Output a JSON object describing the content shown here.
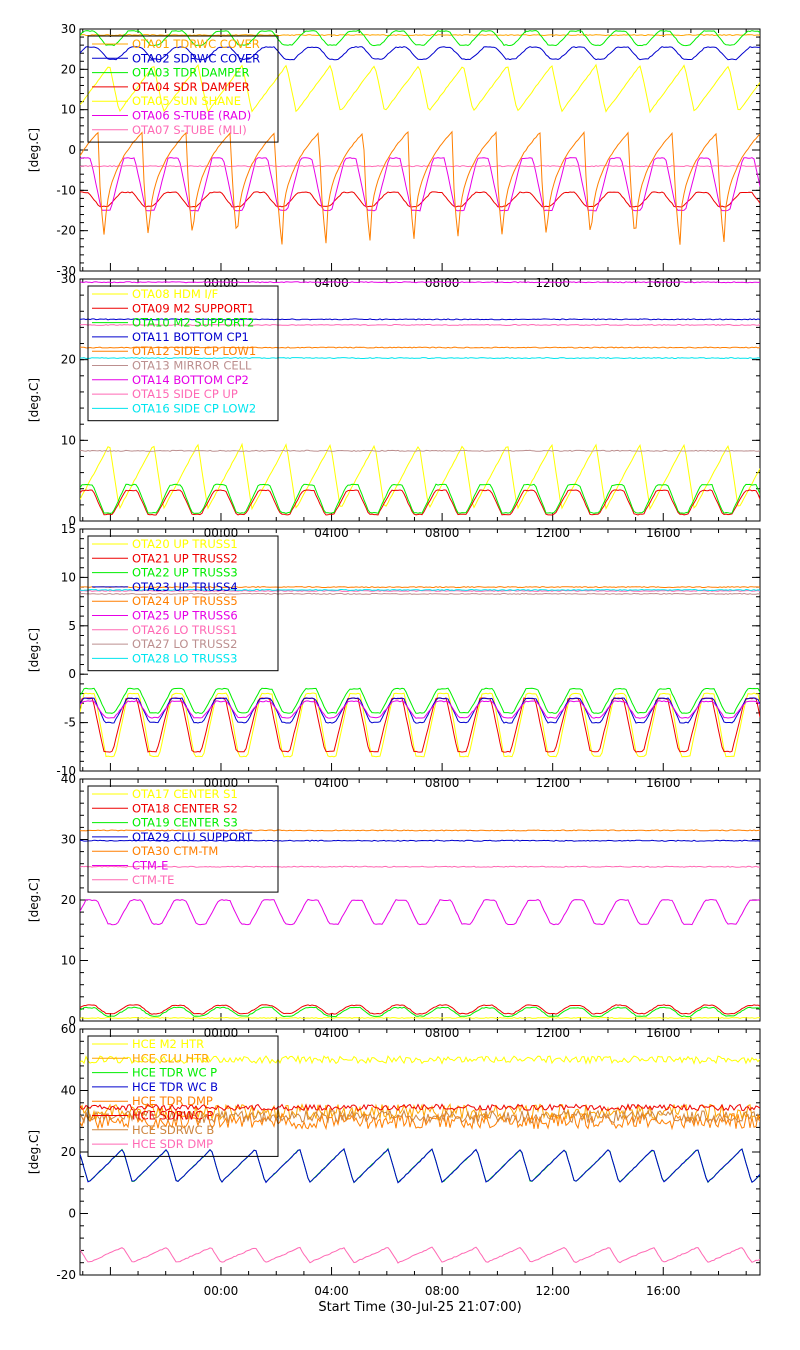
{
  "chart_data": [
    {
      "type": "line",
      "ylabel": "[deg.C]",
      "ylim": [
        -30,
        30
      ],
      "yticks": [
        "30",
        "20",
        "10",
        "0",
        "-10",
        "-20",
        "-30"
      ],
      "ytick_values": [
        30,
        20,
        10,
        0,
        -10,
        -20,
        -30
      ],
      "xticks": [
        "00:00",
        "04:00",
        "08:00",
        "12:00",
        "16:00"
      ],
      "xtick_hours": [
        0,
        4,
        8,
        12,
        16
      ],
      "xlim_hours": [
        -5.1,
        19.5
      ],
      "legend": "top-left",
      "series": [
        {
          "name": "OTA01 TDRWC COVER",
          "color": "#ffa500",
          "kind": "flat",
          "value": 28.5
        },
        {
          "name": "OTA02 SDRWC COVER",
          "color": "#0000cd",
          "kind": "cycle",
          "min": 22.5,
          "max": 25.5,
          "phase": 0.35
        },
        {
          "name": "OTA03 TDR DAMPER",
          "color": "#00ee00",
          "kind": "cycle",
          "min": 26.0,
          "max": 29.5,
          "phase": 0.4
        },
        {
          "name": "OTA04 SDR DAMPER",
          "color": "#ee0000",
          "kind": "cycle",
          "min": -14.0,
          "max": -10.5,
          "phase": 0.55
        },
        {
          "name": "OTA05 SUN SHANE",
          "color": "#ffff00",
          "kind": "saw",
          "min": 9.5,
          "max": 21.0,
          "phase": 0.3
        },
        {
          "name": "OTA06 S-TUBE (RAD)",
          "color": "#e600e6",
          "kind": "cycle",
          "min": -15.0,
          "max": -2.0,
          "phase": 0.5
        },
        {
          "name": "OTA07 S-TUBE (MLI)",
          "color": "#ff69b4",
          "kind": "flat",
          "value": -4.0
        },
        {
          "name": "",
          "color": "#ff7f00",
          "kind": "spike",
          "min": -23.5,
          "max": 4.5,
          "phase": 0.62
        }
      ]
    },
    {
      "type": "line",
      "ylabel": "[deg.C]",
      "ylim": [
        0,
        30
      ],
      "yticks": [
        "30",
        "20",
        "10",
        "0"
      ],
      "ytick_values": [
        30,
        20,
        10,
        0
      ],
      "xticks": [
        "00:00",
        "04:00",
        "08:00",
        "12:00",
        "16:00"
      ],
      "xtick_hours": [
        0,
        4,
        8,
        12,
        16
      ],
      "xlim_hours": [
        -5.1,
        19.5
      ],
      "legend": "top-left",
      "series": [
        {
          "name": "OTA08 HDM I/F",
          "color": "#ffff00",
          "kind": "saw",
          "min": 1.5,
          "max": 9.5,
          "phase": 0.3
        },
        {
          "name": "OTA09 M2 SUPPORT1",
          "color": "#ee0000",
          "kind": "cycle",
          "min": 0.8,
          "max": 3.8,
          "phase": 0.45
        },
        {
          "name": "OTA10 M2 SUPPORT2",
          "color": "#00ee00",
          "kind": "cycle",
          "min": 1.0,
          "max": 4.5,
          "phase": 0.45
        },
        {
          "name": "OTA11 BOTTOM CP1",
          "color": "#0000cd",
          "kind": "flat",
          "value": 25.0
        },
        {
          "name": "OTA12 SIDE CP LOW1",
          "color": "#ff7f00",
          "kind": "flat",
          "value": 21.5
        },
        {
          "name": "OTA13 MIRROR CELL",
          "color": "#bc8f8f",
          "kind": "flat",
          "value": 8.7
        },
        {
          "name": "OTA14 BOTTOM CP2",
          "color": "#e600e6",
          "kind": "flat",
          "value": 29.6
        },
        {
          "name": "OTA15 SIDE CP UP",
          "color": "#ff69b4",
          "kind": "flat",
          "value": 24.3
        },
        {
          "name": "OTA16 SIDE CP LOW2",
          "color": "#00e5ee",
          "kind": "flat",
          "value": 20.2
        }
      ]
    },
    {
      "type": "line",
      "ylabel": "[deg.C]",
      "ylim": [
        -10,
        15
      ],
      "yticks": [
        "15",
        "10",
        "5",
        "0",
        "-5",
        "-10"
      ],
      "ytick_values": [
        15,
        10,
        5,
        0,
        -5,
        -10
      ],
      "xticks": [
        "00:00",
        "04:00",
        "08:00",
        "12:00",
        "16:00"
      ],
      "xtick_hours": [
        0,
        4,
        8,
        12,
        16
      ],
      "xlim_hours": [
        -5.1,
        19.5
      ],
      "legend": "top-left",
      "series": [
        {
          "name": "OTA20 UP TRUSS1",
          "color": "#ffff00",
          "kind": "cycle",
          "min": -8.5,
          "max": -2.0,
          "phase": 0.4
        },
        {
          "name": "OTA21 UP TRUSS2",
          "color": "#ee0000",
          "kind": "cycle",
          "min": -8.0,
          "max": -2.5,
          "phase": 0.45
        },
        {
          "name": "OTA22 UP TRUSS3",
          "color": "#00ee00",
          "kind": "cycle",
          "min": -4.0,
          "max": -1.5,
          "phase": 0.4
        },
        {
          "name": "OTA23 UP TRUSS4",
          "color": "#0000cd",
          "kind": "cycle",
          "min": -5.0,
          "max": -2.5,
          "phase": 0.42
        },
        {
          "name": "OTA24 UP TRUSS5",
          "color": "#ff7f00",
          "kind": "flat",
          "value": 9.0
        },
        {
          "name": "OTA25 UP TRUSS6",
          "color": "#e600e6",
          "kind": "cycle",
          "min": -4.5,
          "max": -2.8,
          "phase": 0.42
        },
        {
          "name": "OTA26 LO TRUSS1",
          "color": "#ff69b4",
          "kind": "flat",
          "value": 8.6
        },
        {
          "name": "OTA27 LO TRUSS2",
          "color": "#bc8f8f",
          "kind": "flat",
          "value": 8.3
        },
        {
          "name": "OTA28 LO TRUSS3",
          "color": "#00e5ee",
          "kind": "flat",
          "value": 8.7
        }
      ]
    },
    {
      "type": "line",
      "ylabel": "[deg.C]",
      "ylim": [
        0,
        40
      ],
      "yticks": [
        "40",
        "30",
        "20",
        "10",
        "0"
      ],
      "ytick_values": [
        40,
        30,
        20,
        10,
        0
      ],
      "xticks": [
        "00:00",
        "04:00",
        "08:00",
        "12:00",
        "16:00"
      ],
      "xtick_hours": [
        0,
        4,
        8,
        12,
        16
      ],
      "xlim_hours": [
        -5.1,
        19.5
      ],
      "legend": "top-left",
      "series": [
        {
          "name": "OTA17 CENTER S1",
          "color": "#ffff00",
          "kind": "flat",
          "value": 0.5
        },
        {
          "name": "OTA18 CENTER S2",
          "color": "#ee0000",
          "kind": "cycle",
          "min": 1.2,
          "max": 2.6,
          "phase": 0.4
        },
        {
          "name": "OTA19 CENTER S3",
          "color": "#00ee00",
          "kind": "cycle",
          "min": 0.8,
          "max": 2.2,
          "phase": 0.4
        },
        {
          "name": "OTA29 CLU SUPPORT",
          "color": "#0000cd",
          "kind": "flat",
          "value": 29.8
        },
        {
          "name": "OTA30 CTM-TM",
          "color": "#ff7f00",
          "kind": "flat",
          "value": 31.5
        },
        {
          "name": "CTM-E",
          "color": "#e600e6",
          "kind": "cycle",
          "min": 16.0,
          "max": 20.0,
          "phase": 0.35
        },
        {
          "name": "CTM-TE",
          "color": "#ff69b4",
          "kind": "flat",
          "value": 25.5
        }
      ]
    },
    {
      "type": "line",
      "ylabel": "[deg.C]",
      "ylim": [
        -20,
        60
      ],
      "yticks": [
        "60",
        "40",
        "20",
        "0",
        "-20"
      ],
      "ytick_values": [
        60,
        40,
        20,
        0,
        -20
      ],
      "xticks": [
        "00:00",
        "04:00",
        "08:00",
        "12:00",
        "16:00"
      ],
      "xtick_hours": [
        0,
        4,
        8,
        12,
        16
      ],
      "xlim_hours": [
        -5.1,
        19.5
      ],
      "legend": "top-left",
      "series": [
        {
          "name": "HCE M2 HTR",
          "color": "#ffff00",
          "kind": "noise",
          "value": 50.0,
          "amp": 1.2
        },
        {
          "name": "HCE CLU HTR",
          "color": "#ffa500",
          "kind": "noise",
          "value": 33.0,
          "amp": 2.5
        },
        {
          "name": "HCE TDR WC P",
          "color": "#00ee00",
          "kind": "saw",
          "min": 10.0,
          "max": 21.0,
          "phase": 0.0
        },
        {
          "name": "HCE TDR WC B",
          "color": "#0000cd",
          "kind": "saw",
          "min": 10.0,
          "max": 21.0,
          "phase": 0.0
        },
        {
          "name": "HCE TDR DMP",
          "color": "#ff7f00",
          "kind": "noise",
          "value": 30.0,
          "amp": 2.5
        },
        {
          "name": "HCE SDRWC P",
          "color": "#ee0000",
          "kind": "noise",
          "value": 34.5,
          "amp": 1.0
        },
        {
          "name": "HCE SDRWC B",
          "color": "#cd853f",
          "kind": "noise",
          "value": 31.5,
          "amp": 2.0
        },
        {
          "name": "HCE SDR DMP",
          "color": "#ff69b4",
          "kind": "saw",
          "min": -16.0,
          "max": -11.0,
          "phase": 0.0
        }
      ]
    }
  ],
  "footer": {
    "xlabel": "Start Time (30-Jul-25 21:07:00)",
    "bottom_ticks": [
      "00:00",
      "04:00",
      "08:00",
      "12:00",
      "16:00"
    ]
  },
  "period_hours": 1.6
}
